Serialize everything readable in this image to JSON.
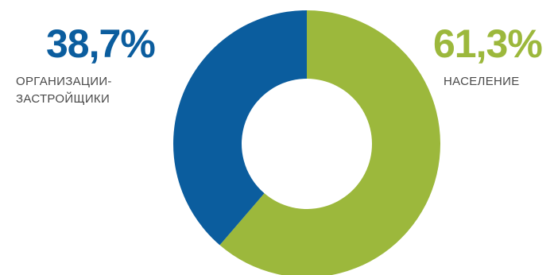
{
  "chart_data": {
    "type": "pie",
    "variant": "donut",
    "title": "",
    "slices": [
      {
        "label_lines": [
          "ОРГАНИЗАЦИИ-",
          "ЗАСТРОЙЩИКИ"
        ],
        "value": 38.7,
        "value_label": "38,7%",
        "color": "#0b5d9e"
      },
      {
        "label_lines": [
          "НАСЕЛЕНИЕ"
        ],
        "value": 61.3,
        "value_label": "61,3%",
        "color": "#9cb83c"
      }
    ],
    "legend": "none"
  }
}
